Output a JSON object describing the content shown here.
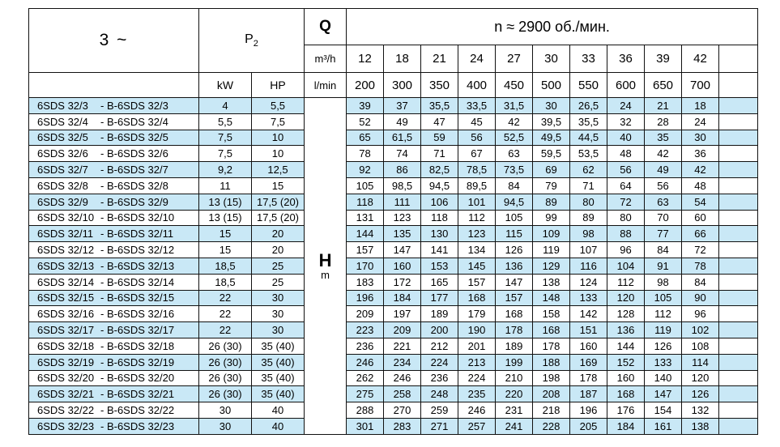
{
  "colors": {
    "stripe": "#c9e8f6"
  },
  "header": {
    "phase": "3 ~",
    "p2": "P",
    "p2_sub": "2",
    "q": "Q",
    "q_unit_top": "m³/h",
    "q_unit_bottom": "l/min",
    "kw": "kW",
    "hp": "HP",
    "speed": "n ≈ 2900 об./мин.",
    "flow_m3h": [
      "12",
      "18",
      "21",
      "24",
      "27",
      "30",
      "33",
      "36",
      "39",
      "42"
    ],
    "flow_lmin": [
      "200",
      "300",
      "350",
      "400",
      "450",
      "500",
      "550",
      "600",
      "650",
      "700"
    ]
  },
  "body": {
    "h_label": "H",
    "h_unit": "m",
    "rows": [
      {
        "model": "6SDS 32/3",
        "model2": "- B-6SDS 32/3",
        "kw": "4",
        "hp": "5,5",
        "values": [
          "39",
          "37",
          "35,5",
          "33,5",
          "31,5",
          "30",
          "26,5",
          "24",
          "21",
          "18"
        ]
      },
      {
        "model": "6SDS 32/4",
        "model2": "- B-6SDS 32/4",
        "kw": "5,5",
        "hp": "7,5",
        "values": [
          "52",
          "49",
          "47",
          "45",
          "42",
          "39,5",
          "35,5",
          "32",
          "28",
          "24"
        ]
      },
      {
        "model": "6SDS 32/5",
        "model2": "- B-6SDS 32/5",
        "kw": "7,5",
        "hp": "10",
        "values": [
          "65",
          "61,5",
          "59",
          "56",
          "52,5",
          "49,5",
          "44,5",
          "40",
          "35",
          "30"
        ]
      },
      {
        "model": "6SDS 32/6",
        "model2": "- B-6SDS 32/6",
        "kw": "7,5",
        "hp": "10",
        "values": [
          "78",
          "74",
          "71",
          "67",
          "63",
          "59,5",
          "53,5",
          "48",
          "42",
          "36"
        ]
      },
      {
        "model": "6SDS 32/7",
        "model2": "- B-6SDS 32/7",
        "kw": "9,2",
        "hp": "12,5",
        "values": [
          "92",
          "86",
          "82,5",
          "78,5",
          "73,5",
          "69",
          "62",
          "56",
          "49",
          "42"
        ]
      },
      {
        "model": "6SDS 32/8",
        "model2": "- B-6SDS 32/8",
        "kw": "11",
        "hp": "15",
        "values": [
          "105",
          "98,5",
          "94,5",
          "89,5",
          "84",
          "79",
          "71",
          "64",
          "56",
          "48"
        ]
      },
      {
        "model": "6SDS 32/9",
        "model2": "- B-6SDS 32/9",
        "kw": "13 (15)",
        "hp": "17,5 (20)",
        "values": [
          "118",
          "111",
          "106",
          "101",
          "94,5",
          "89",
          "80",
          "72",
          "63",
          "54"
        ]
      },
      {
        "model": "6SDS 32/10",
        "model2": "- B-6SDS 32/10",
        "kw": "13 (15)",
        "hp": "17,5 (20)",
        "values": [
          "131",
          "123",
          "118",
          "112",
          "105",
          "99",
          "89",
          "80",
          "70",
          "60"
        ]
      },
      {
        "model": "6SDS 32/11",
        "model2": "- B-6SDS 32/11",
        "kw": "15",
        "hp": "20",
        "values": [
          "144",
          "135",
          "130",
          "123",
          "115",
          "109",
          "98",
          "88",
          "77",
          "66"
        ]
      },
      {
        "model": "6SDS 32/12",
        "model2": "- B-6SDS 32/12",
        "kw": "15",
        "hp": "20",
        "values": [
          "157",
          "147",
          "141",
          "134",
          "126",
          "119",
          "107",
          "96",
          "84",
          "72"
        ]
      },
      {
        "model": "6SDS 32/13",
        "model2": "- B-6SDS 32/13",
        "kw": "18,5",
        "hp": "25",
        "values": [
          "170",
          "160",
          "153",
          "145",
          "136",
          "129",
          "116",
          "104",
          "91",
          "78"
        ]
      },
      {
        "model": "6SDS 32/14",
        "model2": "- B-6SDS 32/14",
        "kw": "18,5",
        "hp": "25",
        "values": [
          "183",
          "172",
          "165",
          "157",
          "147",
          "138",
          "124",
          "112",
          "98",
          "84"
        ]
      },
      {
        "model": "6SDS 32/15",
        "model2": "- B-6SDS 32/15",
        "kw": "22",
        "hp": "30",
        "values": [
          "196",
          "184",
          "177",
          "168",
          "157",
          "148",
          "133",
          "120",
          "105",
          "90"
        ]
      },
      {
        "model": "6SDS 32/16",
        "model2": "- B-6SDS 32/16",
        "kw": "22",
        "hp": "30",
        "values": [
          "209",
          "197",
          "189",
          "179",
          "168",
          "158",
          "142",
          "128",
          "112",
          "96"
        ]
      },
      {
        "model": "6SDS 32/17",
        "model2": "- B-6SDS 32/17",
        "kw": "22",
        "hp": "30",
        "values": [
          "223",
          "209",
          "200",
          "190",
          "178",
          "168",
          "151",
          "136",
          "119",
          "102"
        ]
      },
      {
        "model": "6SDS 32/18",
        "model2": "- B-6SDS 32/18",
        "kw": "26 (30)",
        "hp": "35 (40)",
        "values": [
          "236",
          "221",
          "212",
          "201",
          "189",
          "178",
          "160",
          "144",
          "126",
          "108"
        ]
      },
      {
        "model": "6SDS 32/19",
        "model2": "- B-6SDS 32/19",
        "kw": "26 (30)",
        "hp": "35 (40)",
        "values": [
          "246",
          "234",
          "224",
          "213",
          "199",
          "188",
          "169",
          "152",
          "133",
          "114"
        ]
      },
      {
        "model": "6SDS 32/20",
        "model2": "- B-6SDS 32/20",
        "kw": "26 (30)",
        "hp": "35 (40)",
        "values": [
          "262",
          "246",
          "236",
          "224",
          "210",
          "198",
          "178",
          "160",
          "140",
          "120"
        ]
      },
      {
        "model": "6SDS 32/21",
        "model2": "- B-6SDS 32/21",
        "kw": "26 (30)",
        "hp": "35 (40)",
        "values": [
          "275",
          "258",
          "248",
          "235",
          "220",
          "208",
          "187",
          "168",
          "147",
          "126"
        ]
      },
      {
        "model": "6SDS 32/22",
        "model2": "- B-6SDS 32/22",
        "kw": "30",
        "hp": "40",
        "values": [
          "288",
          "270",
          "259",
          "246",
          "231",
          "218",
          "196",
          "176",
          "154",
          "132"
        ]
      },
      {
        "model": "6SDS 32/23",
        "model2": "- B-6SDS 32/23",
        "kw": "30",
        "hp": "40",
        "values": [
          "301",
          "283",
          "271",
          "257",
          "241",
          "228",
          "205",
          "184",
          "161",
          "138"
        ]
      }
    ]
  }
}
